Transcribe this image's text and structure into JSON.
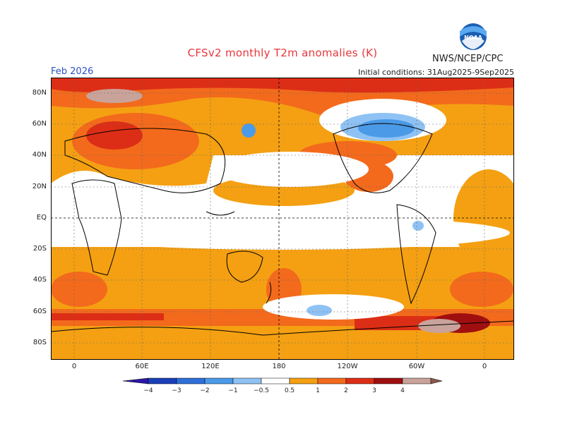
{
  "header": {
    "title": "CFSv2 monthly T2m anomalies (K)",
    "agency": "NWS/NCEP/CPC",
    "month": "Feb 2026",
    "initial_conditions": "Initial conditions: 31Aug2025-9Sep2025",
    "logo_text": "NOAA"
  },
  "axes": {
    "lat_labels": [
      "80N",
      "60N",
      "40N",
      "20N",
      "EQ",
      "20S",
      "40S",
      "60S",
      "80S"
    ],
    "lon_labels": [
      "0",
      "60E",
      "120E",
      "180",
      "120W",
      "60W",
      "0"
    ]
  },
  "colorbar": {
    "ticks": [
      "−4",
      "−3",
      "−2",
      "−1",
      "−0.5",
      "0.5",
      "1",
      "2",
      "3",
      "4"
    ],
    "colors": {
      "lt_m4": "#2b18a8",
      "m4_m3": "#1a3fb8",
      "m3_m2": "#2f6fd9",
      "m2_m1": "#4a9ae8",
      "m1_m05": "#8fc2f4",
      "neutral": "#ffffff",
      "p05_p1": "#f4a012",
      "p1_p2": "#f36a1c",
      "p2_p3": "#dc2e16",
      "p3_p4": "#a00f10",
      "p4_p5": "#c9a39a",
      "gt_p5": "#8a5a4a"
    }
  }
}
